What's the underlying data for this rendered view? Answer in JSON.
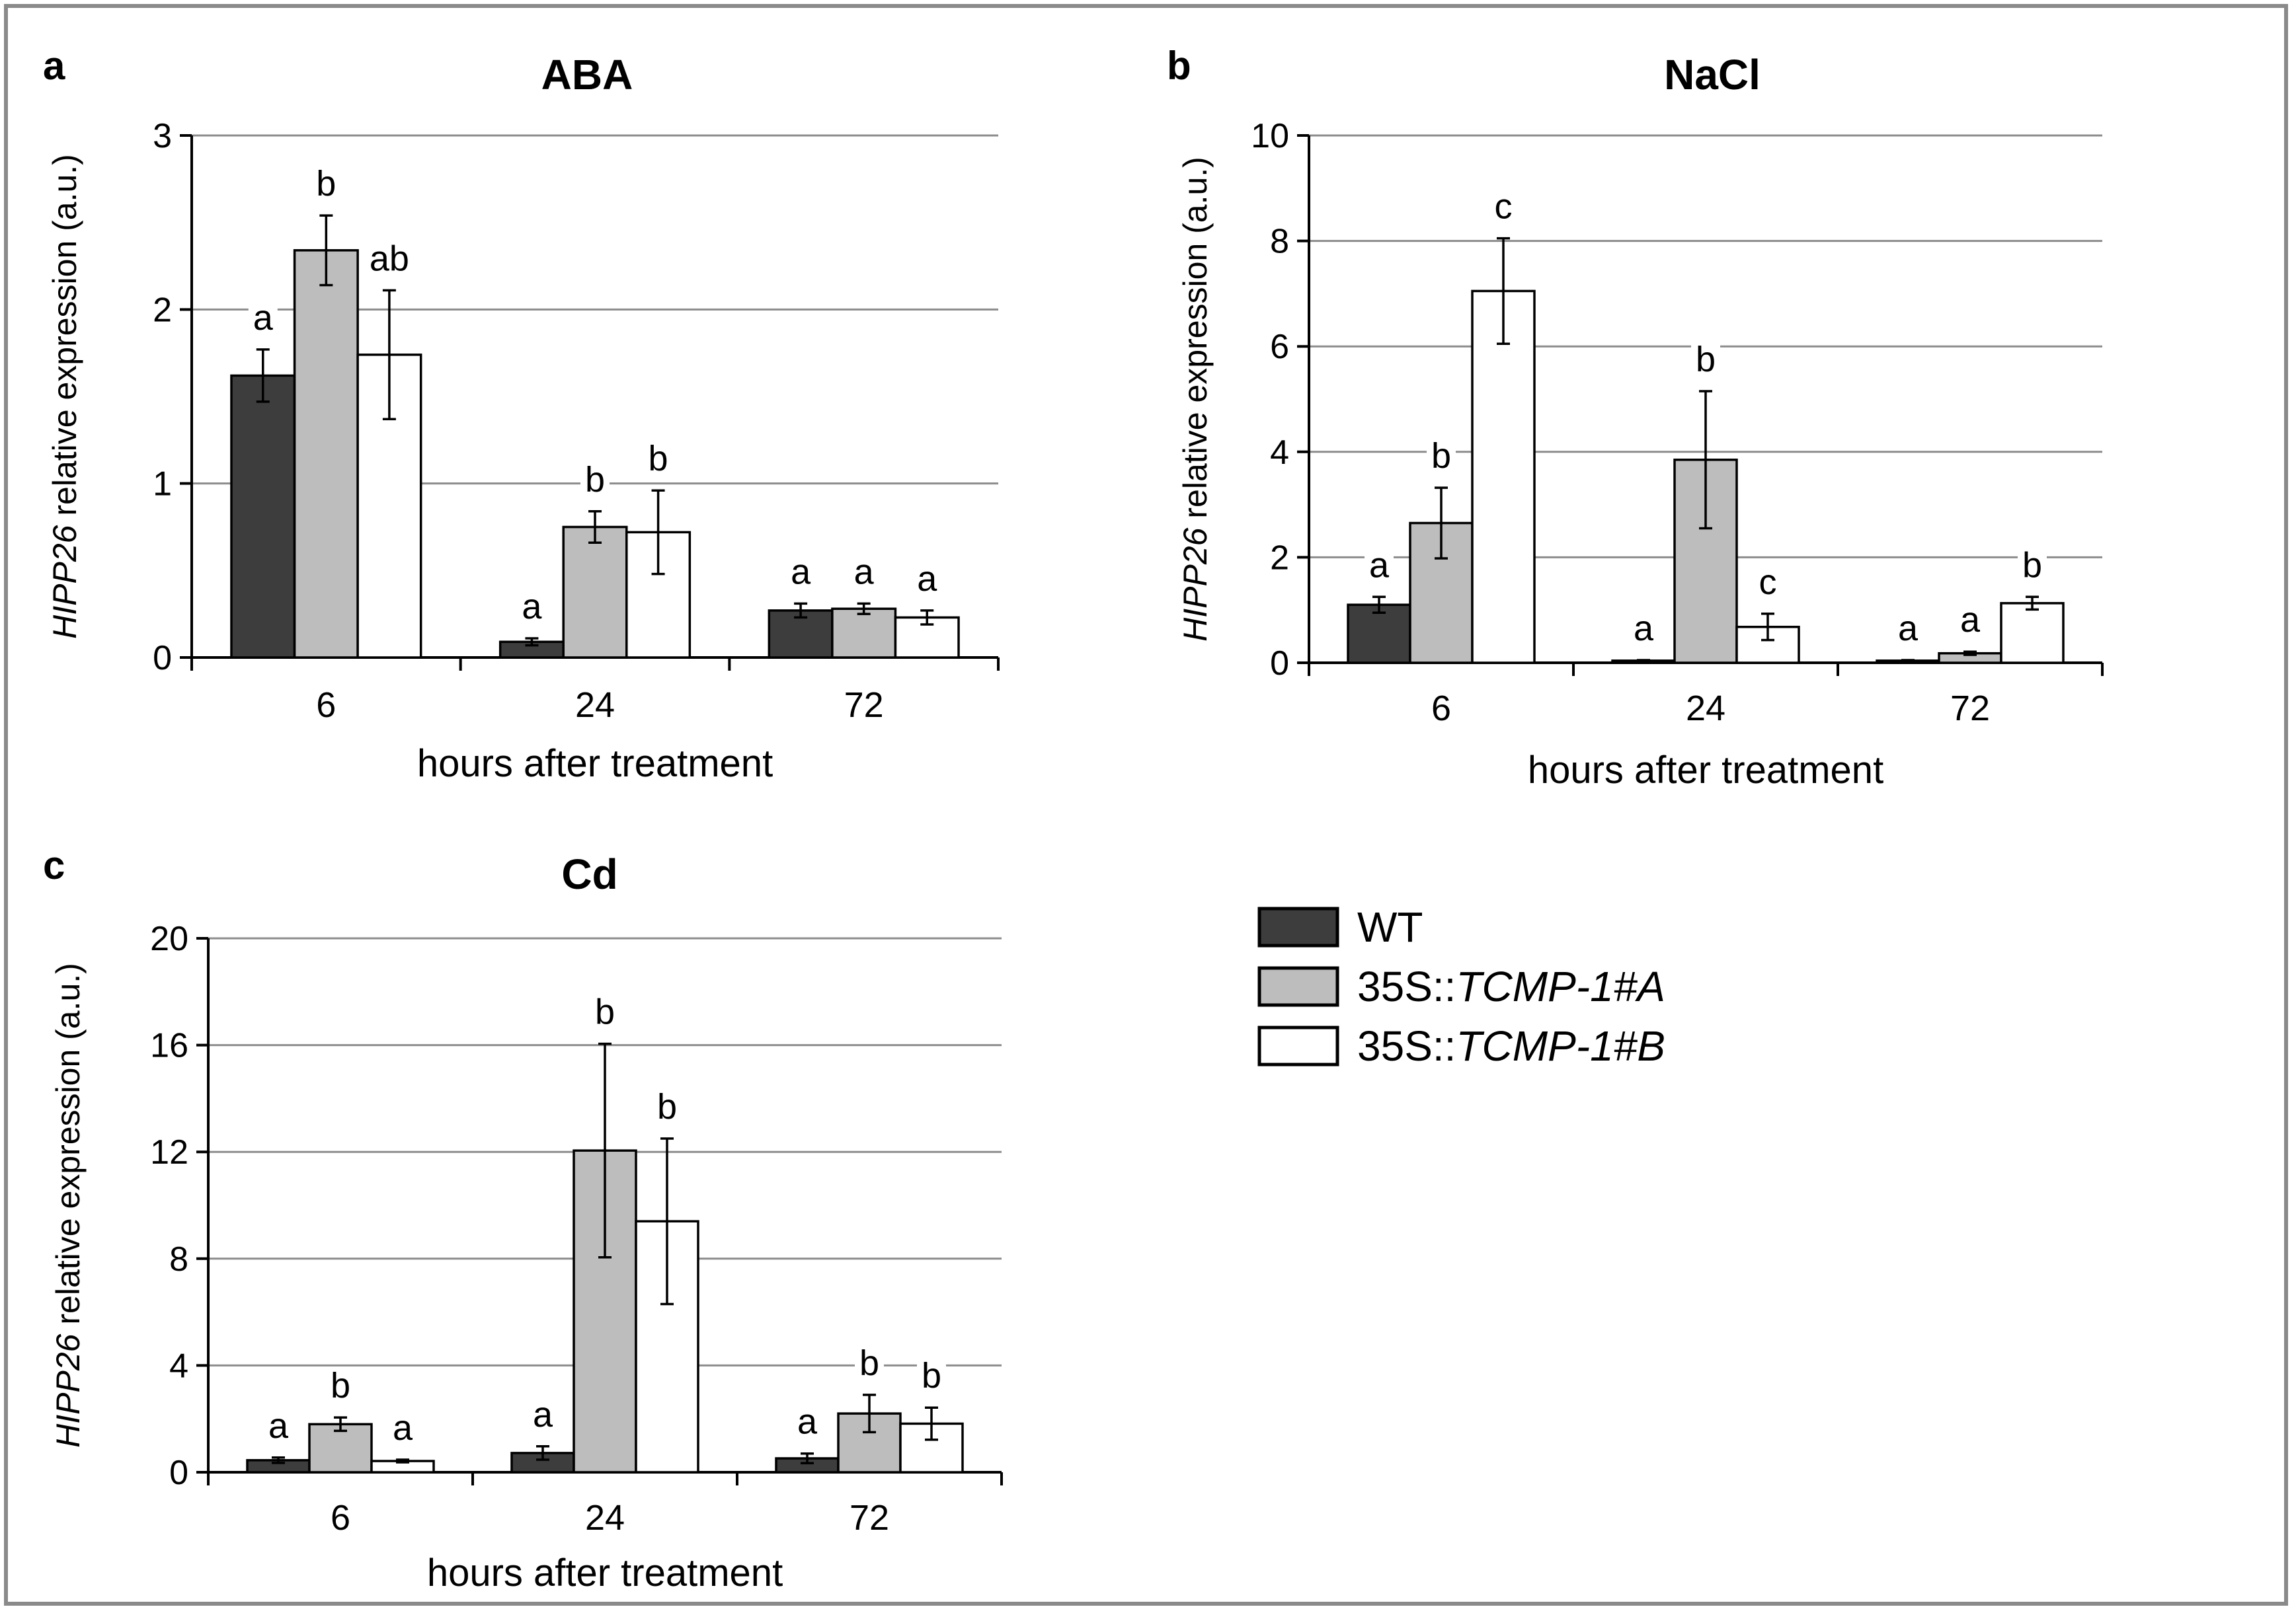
{
  "colors": {
    "WT": "#3d3d3d",
    "35S::TCMP-1#A": "#bdbdbd",
    "35S::TCMP-1#B": "#ffffff",
    "grid": "#8c8c8c",
    "frame": "#8a8a8a"
  },
  "legend": {
    "placement": "right, between panels b and c",
    "items": [
      {
        "label_plain": "WT",
        "label_italic": ""
      },
      {
        "label_plain": "35S::",
        "label_italic": "TCMP-1#A"
      },
      {
        "label_plain": "35S::",
        "label_italic": "TCMP-1#B"
      }
    ]
  },
  "chart_data": [
    {
      "type": "bar",
      "panel_letter": "a",
      "title": "ABA",
      "xlabel": "hours after treatment",
      "ylabel_italic": "HIPP26",
      "ylabel_rest": " relative expression (a.u.)",
      "categories": [
        "6",
        "24",
        "72"
      ],
      "ylim": [
        0,
        3
      ],
      "yticks": [
        0,
        1,
        2,
        3
      ],
      "grid": true,
      "series": [
        {
          "name": "WT",
          "values": [
            1.62,
            0.09,
            0.27
          ],
          "errors": [
            0.15,
            0.02,
            0.04
          ],
          "letters": [
            "a",
            "a",
            "a"
          ]
        },
        {
          "name": "35S::TCMP-1#A",
          "values": [
            2.34,
            0.75,
            0.28
          ],
          "errors": [
            0.2,
            0.09,
            0.03
          ],
          "letters": [
            "b",
            "b",
            "a"
          ]
        },
        {
          "name": "35S::TCMP-1#B",
          "values": [
            1.74,
            0.72,
            0.23
          ],
          "errors": [
            0.37,
            0.24,
            0.04
          ],
          "letters": [
            "ab",
            "b",
            "a"
          ]
        }
      ]
    },
    {
      "type": "bar",
      "panel_letter": "b",
      "title": "NaCl",
      "xlabel": "hours after treatment",
      "ylabel_italic": "HIPP26",
      "ylabel_rest": " relative expression (a.u.)",
      "categories": [
        "6",
        "24",
        "72"
      ],
      "ylim": [
        0,
        10
      ],
      "yticks": [
        0,
        2,
        4,
        6,
        8,
        10
      ],
      "grid": true,
      "series": [
        {
          "name": "WT",
          "values": [
            1.1,
            0.04,
            0.04
          ],
          "errors": [
            0.15,
            0.01,
            0.01
          ],
          "letters": [
            "a",
            "a",
            "a"
          ]
        },
        {
          "name": "35S::TCMP-1#A",
          "values": [
            2.65,
            3.85,
            0.18
          ],
          "errors": [
            0.67,
            1.3,
            0.03
          ],
          "letters": [
            "b",
            "b",
            "a"
          ]
        },
        {
          "name": "35S::TCMP-1#B",
          "values": [
            7.05,
            0.68,
            1.13
          ],
          "errors": [
            1.0,
            0.25,
            0.12
          ],
          "letters": [
            "c",
            "c",
            "b"
          ]
        }
      ]
    },
    {
      "type": "bar",
      "panel_letter": "c",
      "title": "Cd",
      "xlabel": "hours after treatment",
      "ylabel_italic": "HIPP26",
      "ylabel_rest": " relative expression (a.u.)",
      "categories": [
        "6",
        "24",
        "72"
      ],
      "ylim": [
        0,
        20
      ],
      "yticks": [
        0,
        4,
        8,
        12,
        16,
        20
      ],
      "grid": true,
      "series": [
        {
          "name": "WT",
          "values": [
            0.45,
            0.72,
            0.52
          ],
          "errors": [
            0.1,
            0.25,
            0.18
          ],
          "letters": [
            "a",
            "a",
            "a"
          ]
        },
        {
          "name": "35S::TCMP-1#A",
          "values": [
            1.8,
            12.05,
            2.2
          ],
          "errors": [
            0.25,
            4.0,
            0.7
          ],
          "letters": [
            "b",
            "b",
            "b"
          ]
        },
        {
          "name": "35S::TCMP-1#B",
          "values": [
            0.42,
            9.4,
            1.82
          ],
          "errors": [
            0.05,
            3.1,
            0.6
          ],
          "letters": [
            "a",
            "b",
            "b"
          ]
        }
      ]
    }
  ]
}
